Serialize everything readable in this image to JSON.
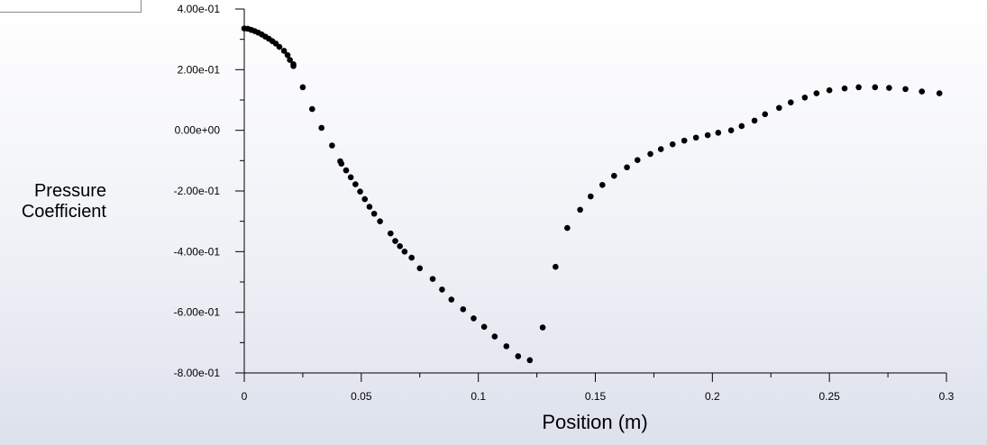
{
  "chart_data": {
    "type": "scatter",
    "title": "",
    "xlabel": "Position (m)",
    "ylabel": [
      "Pressure",
      "Coefficient"
    ],
    "xlim": [
      0,
      0.3
    ],
    "ylim": [
      -0.8,
      0.4
    ],
    "xticks": [
      0,
      0.05,
      0.1,
      0.15,
      0.2,
      0.25,
      0.3
    ],
    "xtick_labels": [
      "0",
      "0.05",
      "0.1",
      "0.15",
      "0.2",
      "0.25",
      "0.3"
    ],
    "yticks": [
      0.4,
      0.2,
      0.0,
      -0.2,
      -0.4,
      -0.6,
      -0.8
    ],
    "ytick_labels": [
      "4.00e-01",
      "2.00e-01",
      "0.00e+00",
      "-2.00e-01",
      "-4.00e-01",
      "-6.00e-01",
      "-8.00e-01"
    ],
    "marker_color": "#000000",
    "series": [
      {
        "points": [
          [
            0.0,
            0.336
          ],
          [
            0.0015,
            0.335
          ],
          [
            0.003,
            0.331
          ],
          [
            0.0045,
            0.327
          ],
          [
            0.006,
            0.322
          ],
          [
            0.0075,
            0.316
          ],
          [
            0.009,
            0.309
          ],
          [
            0.0105,
            0.302
          ],
          [
            0.012,
            0.294
          ],
          [
            0.0135,
            0.286
          ],
          [
            0.015,
            0.275
          ],
          [
            0.017,
            0.262
          ],
          [
            0.0185,
            0.248
          ],
          [
            0.0195,
            0.232
          ],
          [
            0.021,
            0.218
          ],
          [
            0.021,
            0.212
          ],
          [
            0.025,
            0.142
          ],
          [
            0.029,
            0.07
          ],
          [
            0.033,
            0.008
          ],
          [
            0.0375,
            -0.05
          ],
          [
            0.041,
            -0.102
          ],
          [
            0.0415,
            -0.11
          ],
          [
            0.0435,
            -0.132
          ],
          [
            0.0455,
            -0.155
          ],
          [
            0.0475,
            -0.178
          ],
          [
            0.0495,
            -0.202
          ],
          [
            0.0515,
            -0.227
          ],
          [
            0.0535,
            -0.252
          ],
          [
            0.0555,
            -0.275
          ],
          [
            0.058,
            -0.3
          ],
          [
            0.0625,
            -0.34
          ],
          [
            0.0645,
            -0.365
          ],
          [
            0.0665,
            -0.382
          ],
          [
            0.0685,
            -0.4
          ],
          [
            0.0715,
            -0.42
          ],
          [
            0.075,
            -0.455
          ],
          [
            0.0805,
            -0.49
          ],
          [
            0.0845,
            -0.525
          ],
          [
            0.0885,
            -0.558
          ],
          [
            0.0935,
            -0.59
          ],
          [
            0.098,
            -0.62
          ],
          [
            0.1025,
            -0.648
          ],
          [
            0.107,
            -0.68
          ],
          [
            0.112,
            -0.712
          ],
          [
            0.117,
            -0.745
          ],
          [
            0.122,
            -0.758
          ],
          [
            0.1275,
            -0.65
          ],
          [
            0.133,
            -0.45
          ],
          [
            0.138,
            -0.322
          ],
          [
            0.1435,
            -0.262
          ],
          [
            0.148,
            -0.218
          ],
          [
            0.153,
            -0.18
          ],
          [
            0.158,
            -0.15
          ],
          [
            0.1635,
            -0.122
          ],
          [
            0.168,
            -0.098
          ],
          [
            0.1735,
            -0.078
          ],
          [
            0.178,
            -0.062
          ],
          [
            0.183,
            -0.046
          ],
          [
            0.188,
            -0.034
          ],
          [
            0.193,
            -0.024
          ],
          [
            0.198,
            -0.016
          ],
          [
            0.2025,
            -0.008
          ],
          [
            0.208,
            0.0
          ],
          [
            0.2125,
            0.014
          ],
          [
            0.218,
            0.032
          ],
          [
            0.2225,
            0.053
          ],
          [
            0.2285,
            0.074
          ],
          [
            0.2335,
            0.092
          ],
          [
            0.2395,
            0.108
          ],
          [
            0.2445,
            0.122
          ],
          [
            0.25,
            0.132
          ],
          [
            0.2565,
            0.138
          ],
          [
            0.2625,
            0.142
          ],
          [
            0.2695,
            0.142
          ],
          [
            0.2755,
            0.14
          ],
          [
            0.2825,
            0.136
          ],
          [
            0.2895,
            0.128
          ],
          [
            0.297,
            0.122
          ]
        ]
      }
    ]
  }
}
